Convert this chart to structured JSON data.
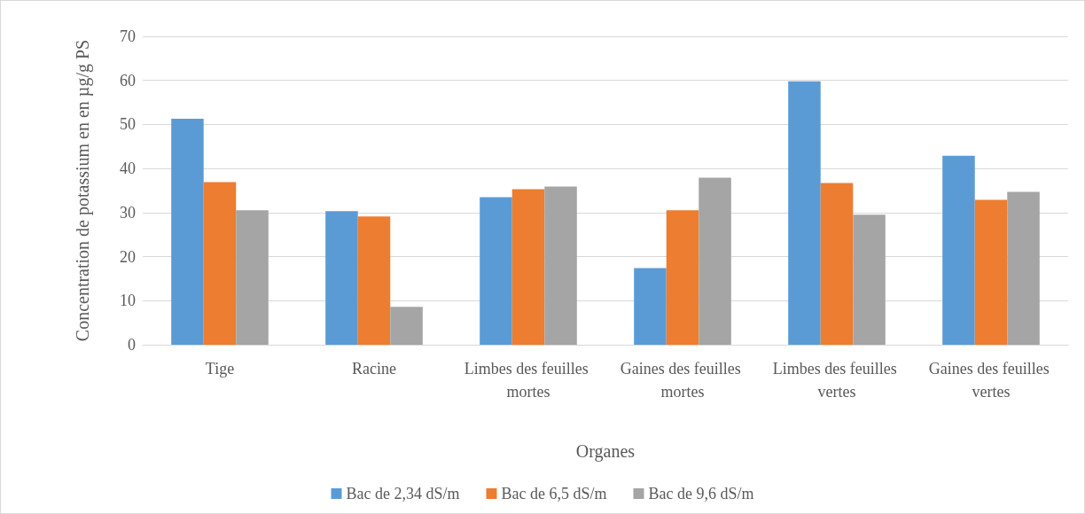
{
  "chart_data": {
    "type": "bar",
    "xlabel": "Organes",
    "ylabel": "Concentration de potassium en en µg/g PS",
    "categories": [
      "Tige",
      "Racine",
      "Limbes des feuilles mortes",
      "Gaines des feuilles mortes",
      "Limbes des feuilles vertes",
      "Gaines des feuilles vertes"
    ],
    "series": [
      {
        "name": "Bac de 2,34 dS/m",
        "color": "#5b9bd5",
        "values": [
          51.3,
          30.3,
          33.5,
          17.4,
          59.8,
          42.9
        ]
      },
      {
        "name": "Bac de 6,5 dS/m",
        "color": "#ed7d31",
        "values": [
          36.9,
          29.1,
          35.3,
          30.5,
          36.7,
          32.9
        ]
      },
      {
        "name": "Bac de 9,6 dS/m",
        "color": "#a5a5a5",
        "values": [
          30.5,
          8.6,
          35.9,
          37.9,
          29.5,
          34.7
        ]
      }
    ],
    "ylim": [
      0,
      70
    ],
    "yticks": [
      0,
      10,
      20,
      30,
      40,
      50,
      60,
      70
    ],
    "grid": "y",
    "legend": "bottom"
  }
}
